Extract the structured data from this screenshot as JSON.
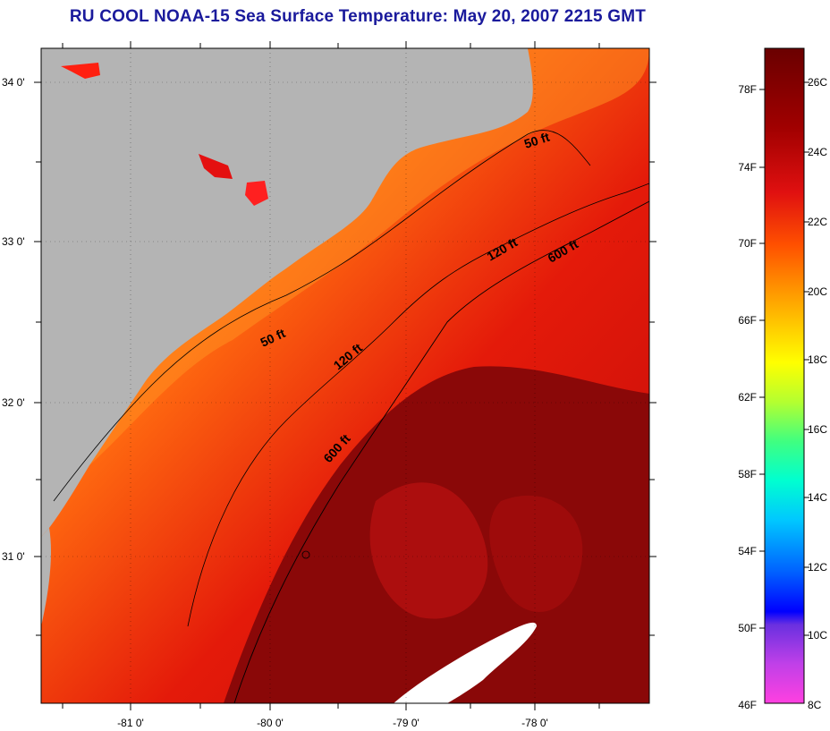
{
  "title": "RU COOL  NOAA-15  Sea Surface Temperature:  May 20, 2007 2215 GMT",
  "longitude_labels": [
    "-81 0'",
    "-80 0'",
    "-79 0'",
    "-78 0'"
  ],
  "latitude_labels": [
    "34 0'",
    "33 0'",
    "32 0'",
    "31 0'"
  ],
  "contour_labels": [
    "50 ft",
    "50 ft",
    "120 ft",
    "120 ft",
    "600 ft",
    "600 ft"
  ],
  "colorbar": {
    "fahrenheit": [
      "78F",
      "74F",
      "70F",
      "66F",
      "62F",
      "58F",
      "54F",
      "50F",
      "46F"
    ],
    "celsius": [
      "26C",
      "24C",
      "22C",
      "20C",
      "18C",
      "16C",
      "14C",
      "12C",
      "10C",
      "8C"
    ]
  },
  "colors": {
    "land": "#b4b4b4",
    "title": "#1a1a9c",
    "warmest": "#7a0a0a",
    "coldest": "#ff40e0"
  }
}
